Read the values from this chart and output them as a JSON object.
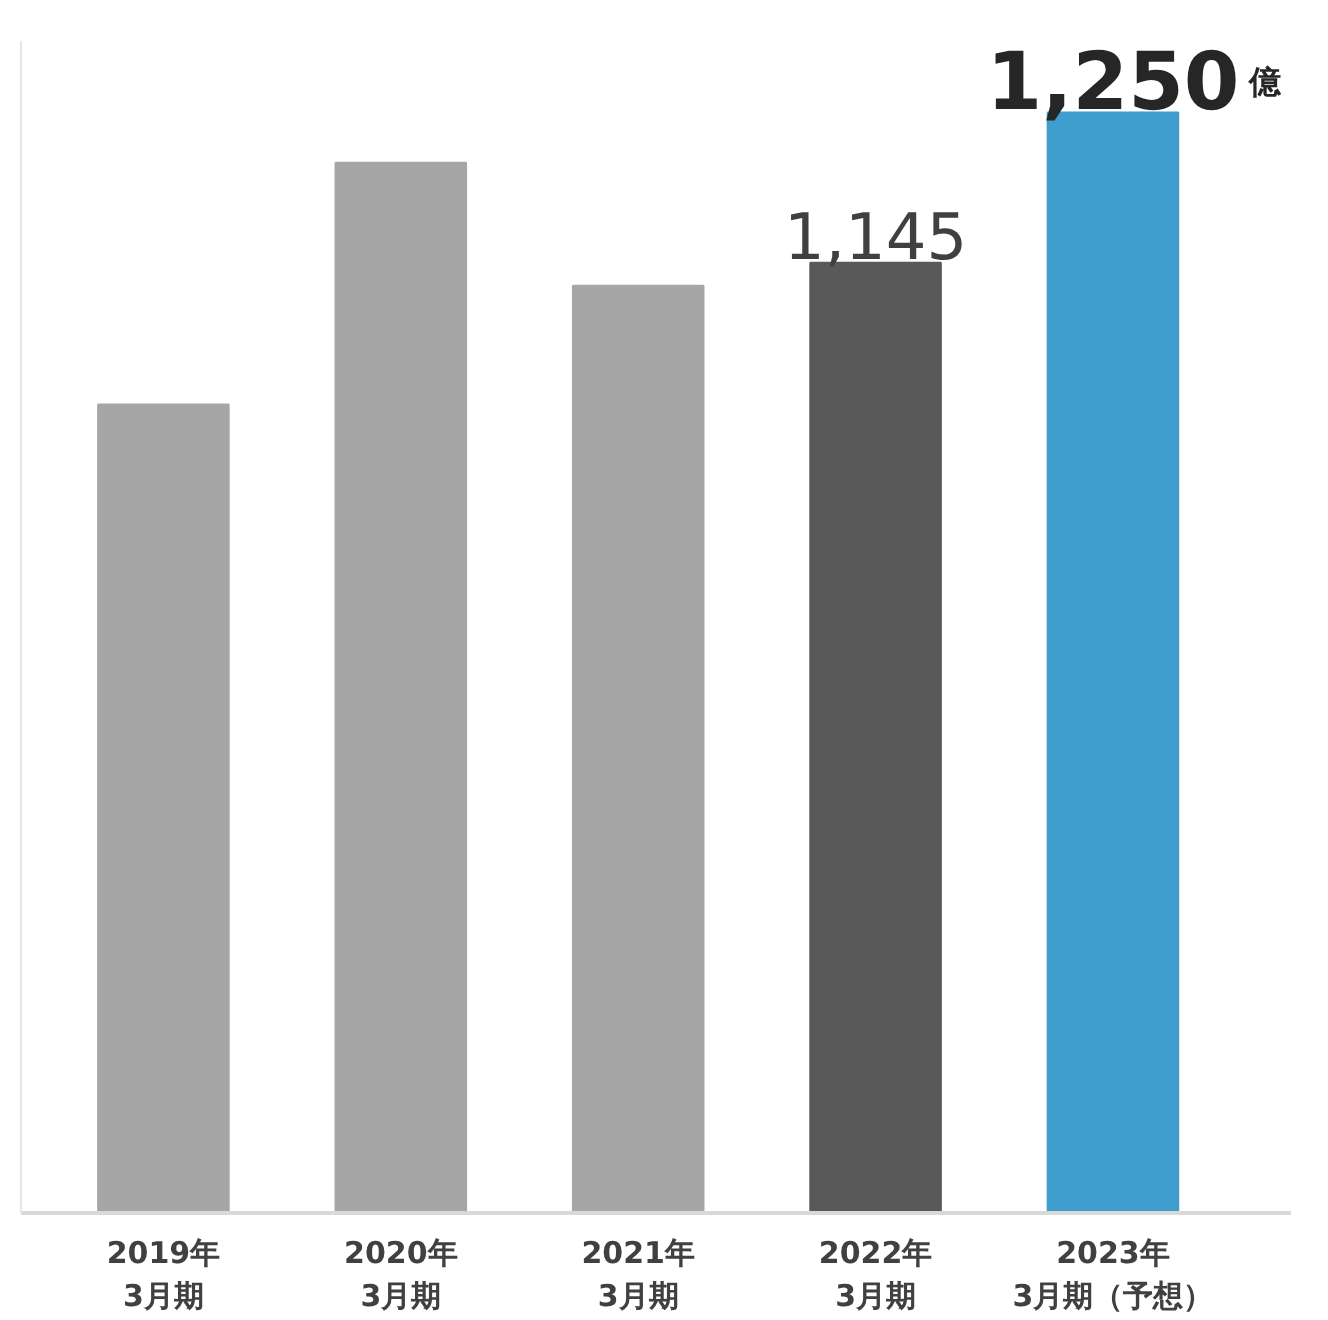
{
  "chart_data": {
    "type": "bar",
    "categories": [
      "2019年\n3月期",
      "2020年\n3月期",
      "2021年\n3月期",
      "2022年\n3月期",
      "2023年\n3月期（予想）"
    ],
    "values": [
      1046,
      1215,
      1129,
      1145,
      1250
    ],
    "colors": [
      "#a6a6a6",
      "#a6a6a6",
      "#a6a6a6",
      "#595959",
      "#3e9dcc"
    ],
    "value_labels": [
      null,
      null,
      null,
      "1,145",
      "1,250"
    ],
    "ylim": [
      481,
      1300
    ],
    "grid": false,
    "annotations": [
      "億"
    ]
  }
}
